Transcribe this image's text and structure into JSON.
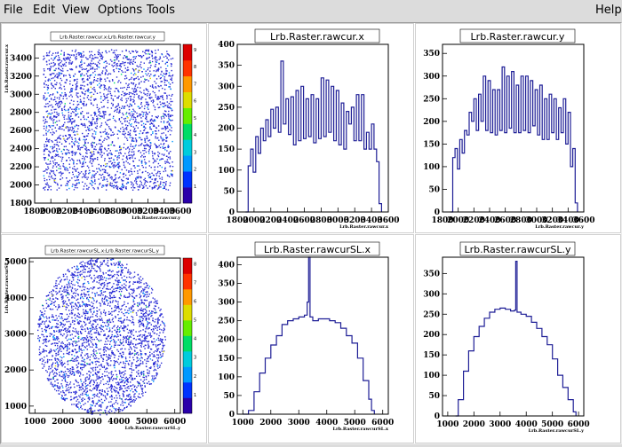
{
  "menu": {
    "file": "File",
    "edit": "Edit",
    "view": "View",
    "options": "Options",
    "tools": "Tools",
    "help": "Help"
  },
  "colors": {
    "hist_line": "#1e1e96",
    "scatter_blue": "#2a2cd4",
    "palette": [
      "#2a00aa",
      "#0033ff",
      "#0099ff",
      "#00ccdd",
      "#00dd66",
      "#66ee00",
      "#dddd00",
      "#ff9900",
      "#ff3300",
      "#dd0000"
    ]
  },
  "charts": [
    {
      "type": "heatmap",
      "title": "Lrb.Raster.rawcur.x:Lrb.Raster.rawcur.y",
      "xlabel": "Lrb.Raster.rawcur.y",
      "ylabel": "Lrb.Raster.rawcur.x",
      "xlim": [
        1800,
        3600
      ],
      "ylim": [
        1800,
        3550
      ],
      "xticks": [
        "1800",
        "2000",
        "2200",
        "2400",
        "2600",
        "2800",
        "3000",
        "3200",
        "3400",
        "3600"
      ],
      "yticks": [
        "1800",
        "2000",
        "2200",
        "2400",
        "2600",
        "2800",
        "3000",
        "3200",
        "3400"
      ],
      "shape": "rect",
      "region": {
        "x": [
          1900,
          3500
        ],
        "y": [
          1950,
          3500
        ]
      },
      "palette_ticks": [
        "1",
        "2",
        "3",
        "4",
        "5",
        "6",
        "7",
        "8",
        "9"
      ]
    },
    {
      "type": "line",
      "title": "Lrb.Raster.rawcur.x",
      "xlabel": "Lrb.Raster.rawcur.x",
      "xlim": [
        1800,
        3600
      ],
      "ylim": [
        0,
        400
      ],
      "xticks": [
        "1800",
        "2000",
        "2200",
        "2400",
        "2600",
        "2800",
        "3000",
        "3200",
        "3400",
        "3600"
      ],
      "yticks": [
        "0",
        "50",
        "100",
        "150",
        "200",
        "250",
        "300",
        "350",
        "400"
      ],
      "x": [
        1900,
        1930,
        1960,
        1990,
        2020,
        2050,
        2080,
        2110,
        2140,
        2170,
        2200,
        2230,
        2260,
        2290,
        2320,
        2350,
        2380,
        2410,
        2440,
        2470,
        2500,
        2530,
        2560,
        2590,
        2620,
        2650,
        2680,
        2710,
        2740,
        2770,
        2800,
        2830,
        2860,
        2890,
        2920,
        2950,
        2980,
        3010,
        3040,
        3070,
        3100,
        3130,
        3160,
        3190,
        3220,
        3250,
        3280,
        3310,
        3340,
        3370,
        3400,
        3430,
        3460,
        3490,
        3520
      ],
      "y": [
        0,
        110,
        150,
        95,
        180,
        140,
        200,
        170,
        220,
        180,
        245,
        200,
        250,
        190,
        360,
        210,
        270,
        185,
        275,
        160,
        290,
        170,
        300,
        175,
        270,
        180,
        280,
        165,
        270,
        175,
        320,
        180,
        315,
        190,
        300,
        170,
        290,
        160,
        260,
        150,
        240,
        210,
        250,
        170,
        280,
        170,
        280,
        150,
        190,
        150,
        210,
        150,
        120,
        20,
        0
      ]
    },
    {
      "type": "line",
      "title": "Lrb.Raster.rawcur.y",
      "xlabel": "Lrb.Raster.rawcur.y",
      "xlim": [
        1800,
        3600
      ],
      "ylim": [
        0,
        370
      ],
      "xticks": [
        "1800",
        "2000",
        "2200",
        "2400",
        "2600",
        "2800",
        "3000",
        "3200",
        "3400",
        "3600"
      ],
      "yticks": [
        "0",
        "50",
        "100",
        "150",
        "200",
        "250",
        "300",
        "350"
      ],
      "x": [
        1900,
        1930,
        1960,
        1990,
        2020,
        2050,
        2080,
        2110,
        2140,
        2170,
        2200,
        2230,
        2260,
        2290,
        2320,
        2350,
        2380,
        2410,
        2440,
        2470,
        2500,
        2530,
        2560,
        2590,
        2620,
        2650,
        2680,
        2710,
        2740,
        2770,
        2800,
        2830,
        2860,
        2890,
        2920,
        2950,
        2980,
        3010,
        3040,
        3070,
        3100,
        3130,
        3160,
        3190,
        3220,
        3250,
        3280,
        3310,
        3340,
        3370,
        3400,
        3430,
        3460,
        3490,
        3520
      ],
      "y": [
        0,
        120,
        140,
        95,
        160,
        130,
        180,
        170,
        220,
        200,
        250,
        180,
        260,
        200,
        300,
        180,
        290,
        175,
        270,
        170,
        270,
        180,
        320,
        175,
        300,
        185,
        310,
        175,
        280,
        175,
        300,
        180,
        300,
        175,
        290,
        190,
        270,
        170,
        280,
        160,
        250,
        160,
        260,
        175,
        250,
        160,
        230,
        175,
        250,
        150,
        220,
        100,
        140,
        20,
        0
      ]
    },
    {
      "type": "heatmap",
      "title": "Lrb.Raster.rawcurSL.x:Lrb.Raster.rawcurSL.y",
      "xlabel": "Lrb.Raster.rawcurSL.y",
      "ylabel": "Lrb.Raster.rawcurSL.x",
      "xlim": [
        800,
        6200
      ],
      "ylim": [
        800,
        5100
      ],
      "xticks": [
        "1000",
        "2000",
        "3000",
        "4000",
        "5000",
        "6000"
      ],
      "yticks": [
        "1000",
        "2000",
        "3000",
        "4000",
        "5000"
      ],
      "shape": "circle",
      "region": {
        "cx": 3350,
        "cy": 2950,
        "r": 2300
      },
      "palette_ticks": [
        "1",
        "2",
        "3",
        "4",
        "5",
        "6",
        "7",
        "8"
      ]
    },
    {
      "type": "line",
      "title": "Lrb.Raster.rawcurSL.x",
      "xlabel": "Lrb.Raster.rawcurSL.x",
      "xlim": [
        800,
        6200
      ],
      "ylim": [
        0,
        420
      ],
      "xticks": [
        "1000",
        "2000",
        "3000",
        "4000",
        "5000",
        "6000"
      ],
      "yticks": [
        "0",
        "50",
        "100",
        "150",
        "200",
        "250",
        "300",
        "350",
        "400"
      ],
      "x": [
        1000,
        1200,
        1400,
        1600,
        1800,
        2000,
        2200,
        2400,
        2600,
        2800,
        3000,
        3200,
        3300,
        3350,
        3400,
        3500,
        3700,
        3900,
        4100,
        4300,
        4500,
        4700,
        4900,
        5100,
        5300,
        5500,
        5600,
        5700
      ],
      "y": [
        0,
        10,
        60,
        110,
        150,
        185,
        210,
        240,
        250,
        255,
        260,
        265,
        300,
        420,
        260,
        250,
        255,
        255,
        250,
        245,
        230,
        210,
        190,
        150,
        90,
        40,
        10,
        0
      ]
    },
    {
      "type": "line",
      "title": "Lrb.Raster.rawcurSL.y",
      "xlabel": "Lrb.Raster.rawcurSL.y",
      "xlim": [
        800,
        6200
      ],
      "ylim": [
        0,
        390
      ],
      "xticks": [
        "1000",
        "2000",
        "3000",
        "4000",
        "5000",
        "6000"
      ],
      "yticks": [
        "0",
        "50",
        "100",
        "150",
        "200",
        "250",
        "300",
        "350"
      ],
      "x": [
        1300,
        1400,
        1600,
        1800,
        2000,
        2200,
        2400,
        2600,
        2800,
        3000,
        3200,
        3400,
        3550,
        3600,
        3650,
        3800,
        4000,
        4200,
        4400,
        4600,
        4800,
        5000,
        5200,
        5400,
        5600,
        5800,
        5900
      ],
      "y": [
        0,
        40,
        110,
        160,
        195,
        220,
        240,
        255,
        262,
        265,
        262,
        258,
        260,
        380,
        255,
        250,
        245,
        230,
        215,
        195,
        175,
        140,
        100,
        70,
        40,
        10,
        0
      ]
    }
  ]
}
